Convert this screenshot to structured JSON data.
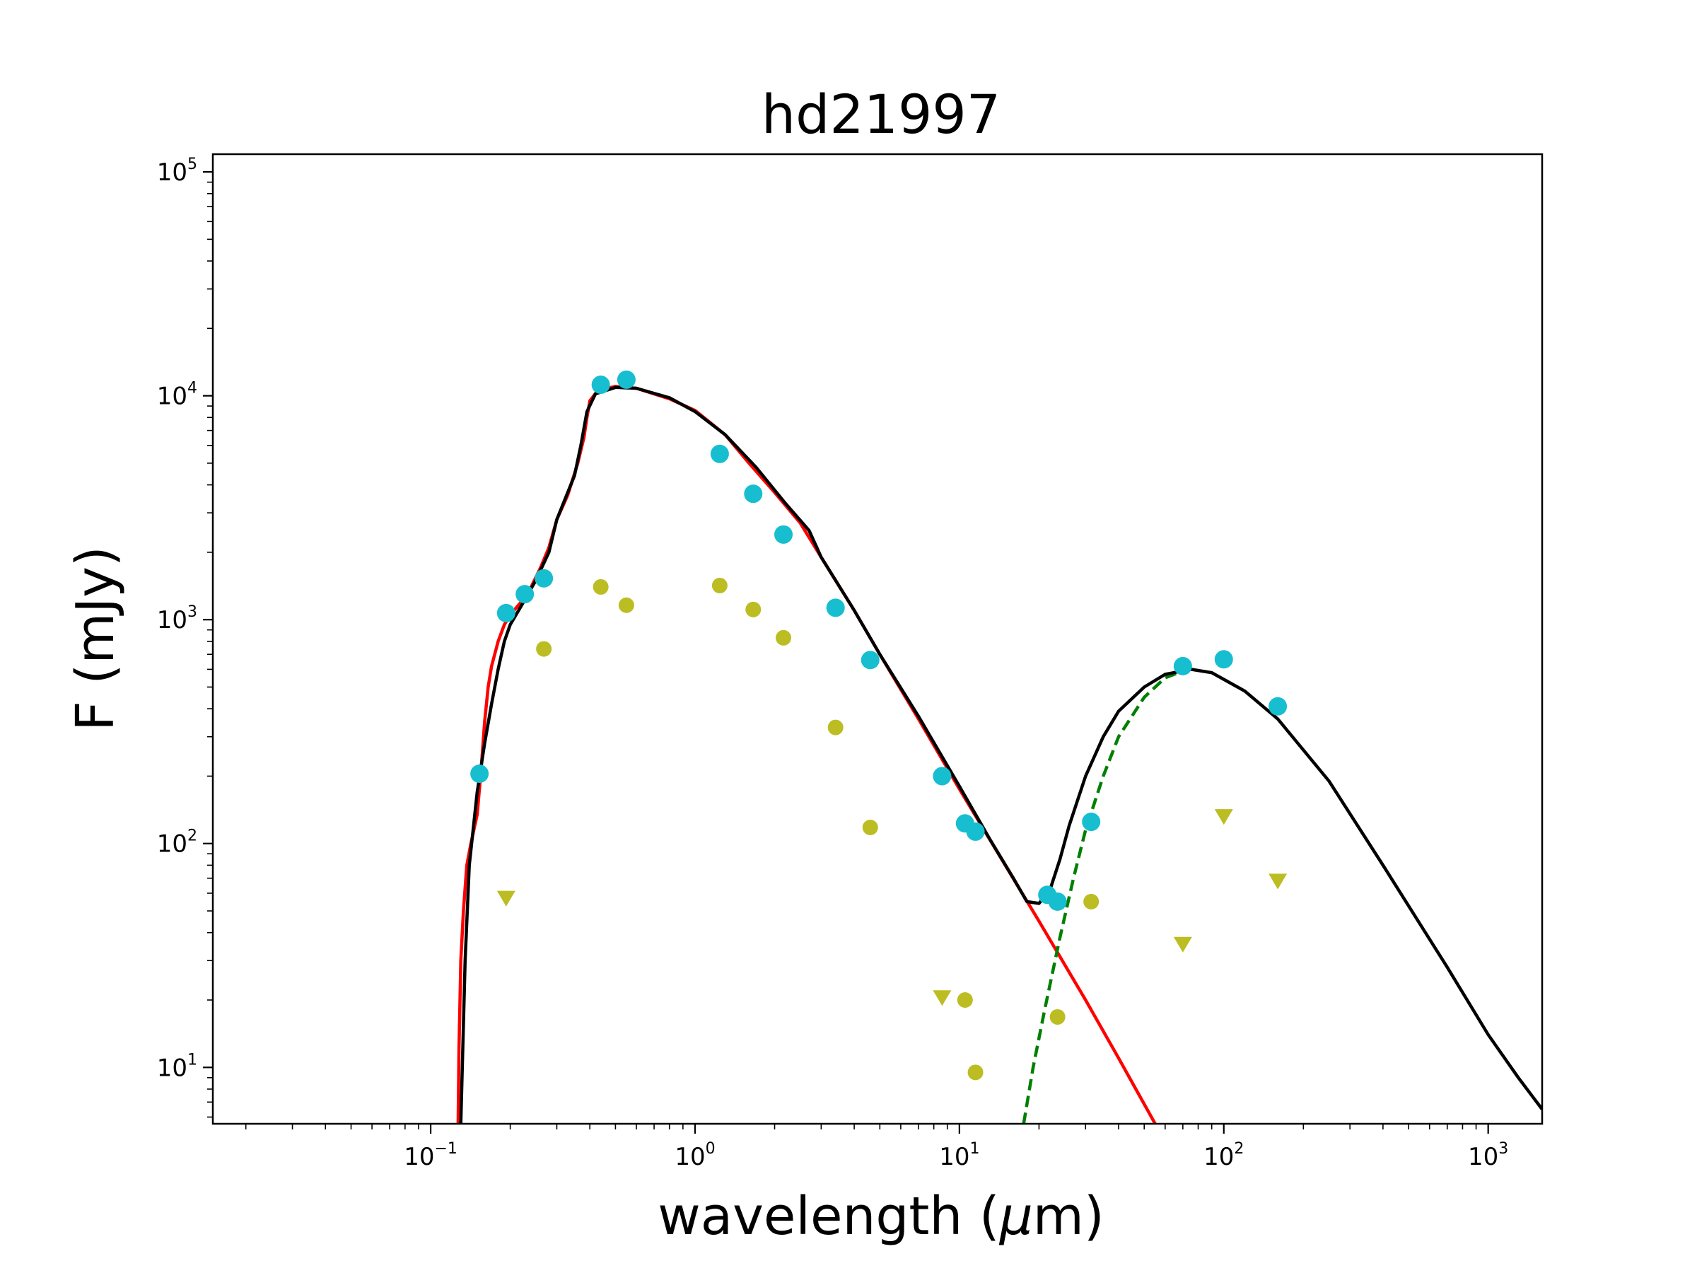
{
  "chart_data": {
    "type": "scatter",
    "title": "hd21997",
    "xlabel_prefix": "wavelength (",
    "xlabel_symbol": "μ",
    "xlabel_suffix": "m)",
    "ylabel": "F (mJy)",
    "xscale": "log",
    "yscale": "log",
    "xlim": [
      0.015,
      1600
    ],
    "ylim": [
      5.6,
      120000
    ],
    "x_ticks": [
      {
        "value": 0.1,
        "base": "10",
        "exp": "−1"
      },
      {
        "value": 1,
        "base": "10",
        "exp": "0"
      },
      {
        "value": 10,
        "base": "10",
        "exp": "1"
      },
      {
        "value": 100,
        "base": "10",
        "exp": "2"
      },
      {
        "value": 1000,
        "base": "10",
        "exp": "3"
      }
    ],
    "y_ticks": [
      {
        "value": 10,
        "base": "10",
        "exp": "1"
      },
      {
        "value": 100,
        "base": "10",
        "exp": "2"
      },
      {
        "value": 1000,
        "base": "10",
        "exp": "3"
      },
      {
        "value": 10000,
        "base": "10",
        "exp": "4"
      },
      {
        "value": 100000,
        "base": "10",
        "exp": "5"
      }
    ],
    "grid": false,
    "legend": "none",
    "colors": {
      "photometry": "#17becf",
      "photosphere_subtracted": "#bcbd22",
      "stellar_model": "#ff0000",
      "disk_model": "#008000",
      "total_model": "#000000"
    },
    "series": [
      {
        "kind": "points",
        "marker": "circle",
        "color_key": "photometry",
        "points": [
          [
            0.153,
            205
          ],
          [
            0.193,
            1070
          ],
          [
            0.227,
            1300
          ],
          [
            0.268,
            1530
          ],
          [
            0.44,
            11200
          ],
          [
            0.55,
            11800
          ],
          [
            1.24,
            5500
          ],
          [
            1.66,
            3650
          ],
          [
            2.16,
            2400
          ],
          [
            3.4,
            1130
          ],
          [
            4.6,
            660
          ],
          [
            8.6,
            200
          ],
          [
            10.5,
            123
          ],
          [
            11.5,
            113
          ],
          [
            21.5,
            59
          ],
          [
            23.5,
            55
          ],
          [
            31.5,
            125
          ],
          [
            70,
            620
          ],
          [
            100,
            665
          ],
          [
            160,
            410
          ]
        ]
      },
      {
        "kind": "points",
        "marker": "circle-small",
        "color_key": "photosphere_subtracted",
        "points": [
          [
            0.268,
            740
          ],
          [
            0.44,
            1400
          ],
          [
            0.55,
            1160
          ],
          [
            1.24,
            1420
          ],
          [
            1.66,
            1110
          ],
          [
            2.16,
            830
          ],
          [
            3.4,
            330
          ],
          [
            4.6,
            118
          ],
          [
            10.5,
            20
          ],
          [
            11.5,
            9.5
          ],
          [
            23.5,
            16.8
          ],
          [
            31.5,
            55
          ]
        ]
      },
      {
        "kind": "points",
        "marker": "triangle-down",
        "color_key": "photosphere_subtracted",
        "points": [
          [
            0.193,
            57
          ],
          [
            8.6,
            20.5
          ],
          [
            70,
            35.5
          ],
          [
            100,
            132
          ],
          [
            160,
            68
          ]
        ]
      },
      {
        "kind": "line",
        "style": "solid",
        "color_key": "stellar_model",
        "points": [
          [
            0.127,
            5.6
          ],
          [
            0.128,
            12
          ],
          [
            0.13,
            30
          ],
          [
            0.133,
            50
          ],
          [
            0.137,
            80
          ],
          [
            0.142,
            100
          ],
          [
            0.15,
            135
          ],
          [
            0.155,
            210
          ],
          [
            0.16,
            350
          ],
          [
            0.165,
            500
          ],
          [
            0.17,
            620
          ],
          [
            0.18,
            800
          ],
          [
            0.19,
            950
          ],
          [
            0.2,
            1050
          ],
          [
            0.22,
            1200
          ],
          [
            0.24,
            1400
          ],
          [
            0.26,
            1700
          ],
          [
            0.28,
            2100
          ],
          [
            0.3,
            2800
          ],
          [
            0.33,
            3600
          ],
          [
            0.36,
            5000
          ],
          [
            0.38,
            6500
          ],
          [
            0.39,
            8000
          ],
          [
            0.4,
            9500
          ],
          [
            0.43,
            10600
          ],
          [
            0.5,
            11000
          ],
          [
            0.6,
            10800
          ],
          [
            0.8,
            9700
          ],
          [
            1.0,
            8600
          ],
          [
            1.3,
            6700
          ],
          [
            1.6,
            5000
          ],
          [
            2.0,
            3700
          ],
          [
            2.5,
            2700
          ],
          [
            3,
            1900
          ],
          [
            4,
            1100
          ],
          [
            5,
            700
          ],
          [
            7,
            360
          ],
          [
            10,
            175
          ],
          [
            15,
            79
          ],
          [
            20,
            45
          ],
          [
            30,
            20
          ],
          [
            40,
            11
          ],
          [
            55,
            5.6
          ]
        ]
      },
      {
        "kind": "line",
        "style": "dashed",
        "color_key": "disk_model",
        "points": [
          [
            17.5,
            5.6
          ],
          [
            19,
            10
          ],
          [
            21,
            18
          ],
          [
            24,
            38
          ],
          [
            27,
            70
          ],
          [
            30,
            115
          ],
          [
            35,
            200
          ],
          [
            40,
            300
          ],
          [
            50,
            450
          ],
          [
            60,
            550
          ],
          [
            70,
            590
          ]
        ]
      },
      {
        "kind": "line",
        "style": "solid",
        "color_key": "total_model",
        "points": [
          [
            0.13,
            5.6
          ],
          [
            0.135,
            30
          ],
          [
            0.14,
            80
          ],
          [
            0.15,
            170
          ],
          [
            0.16,
            280
          ],
          [
            0.17,
            420
          ],
          [
            0.18,
            600
          ],
          [
            0.19,
            800
          ],
          [
            0.2,
            950
          ],
          [
            0.22,
            1150
          ],
          [
            0.25,
            1500
          ],
          [
            0.28,
            2000
          ],
          [
            0.3,
            2800
          ],
          [
            0.35,
            4400
          ],
          [
            0.37,
            6000
          ],
          [
            0.39,
            8500
          ],
          [
            0.42,
            10200
          ],
          [
            0.5,
            10900
          ],
          [
            0.6,
            10800
          ],
          [
            0.8,
            9800
          ],
          [
            1.0,
            8500
          ],
          [
            1.3,
            6700
          ],
          [
            1.7,
            4800
          ],
          [
            2.2,
            3300
          ],
          [
            2.7,
            2500
          ],
          [
            3,
            1900
          ],
          [
            4,
            1100
          ],
          [
            5,
            700
          ],
          [
            7,
            370
          ],
          [
            10,
            180
          ],
          [
            13,
            105
          ],
          [
            16,
            70
          ],
          [
            18,
            55
          ],
          [
            20,
            54
          ],
          [
            22,
            62
          ],
          [
            24,
            85
          ],
          [
            26,
            120
          ],
          [
            30,
            200
          ],
          [
            35,
            300
          ],
          [
            40,
            390
          ],
          [
            50,
            500
          ],
          [
            60,
            570
          ],
          [
            75,
            600
          ],
          [
            90,
            580
          ],
          [
            120,
            480
          ],
          [
            160,
            360
          ],
          [
            250,
            190
          ],
          [
            400,
            80
          ],
          [
            700,
            28
          ],
          [
            1000,
            14
          ],
          [
            1300,
            9
          ],
          [
            1600,
            6.5
          ]
        ]
      }
    ]
  }
}
